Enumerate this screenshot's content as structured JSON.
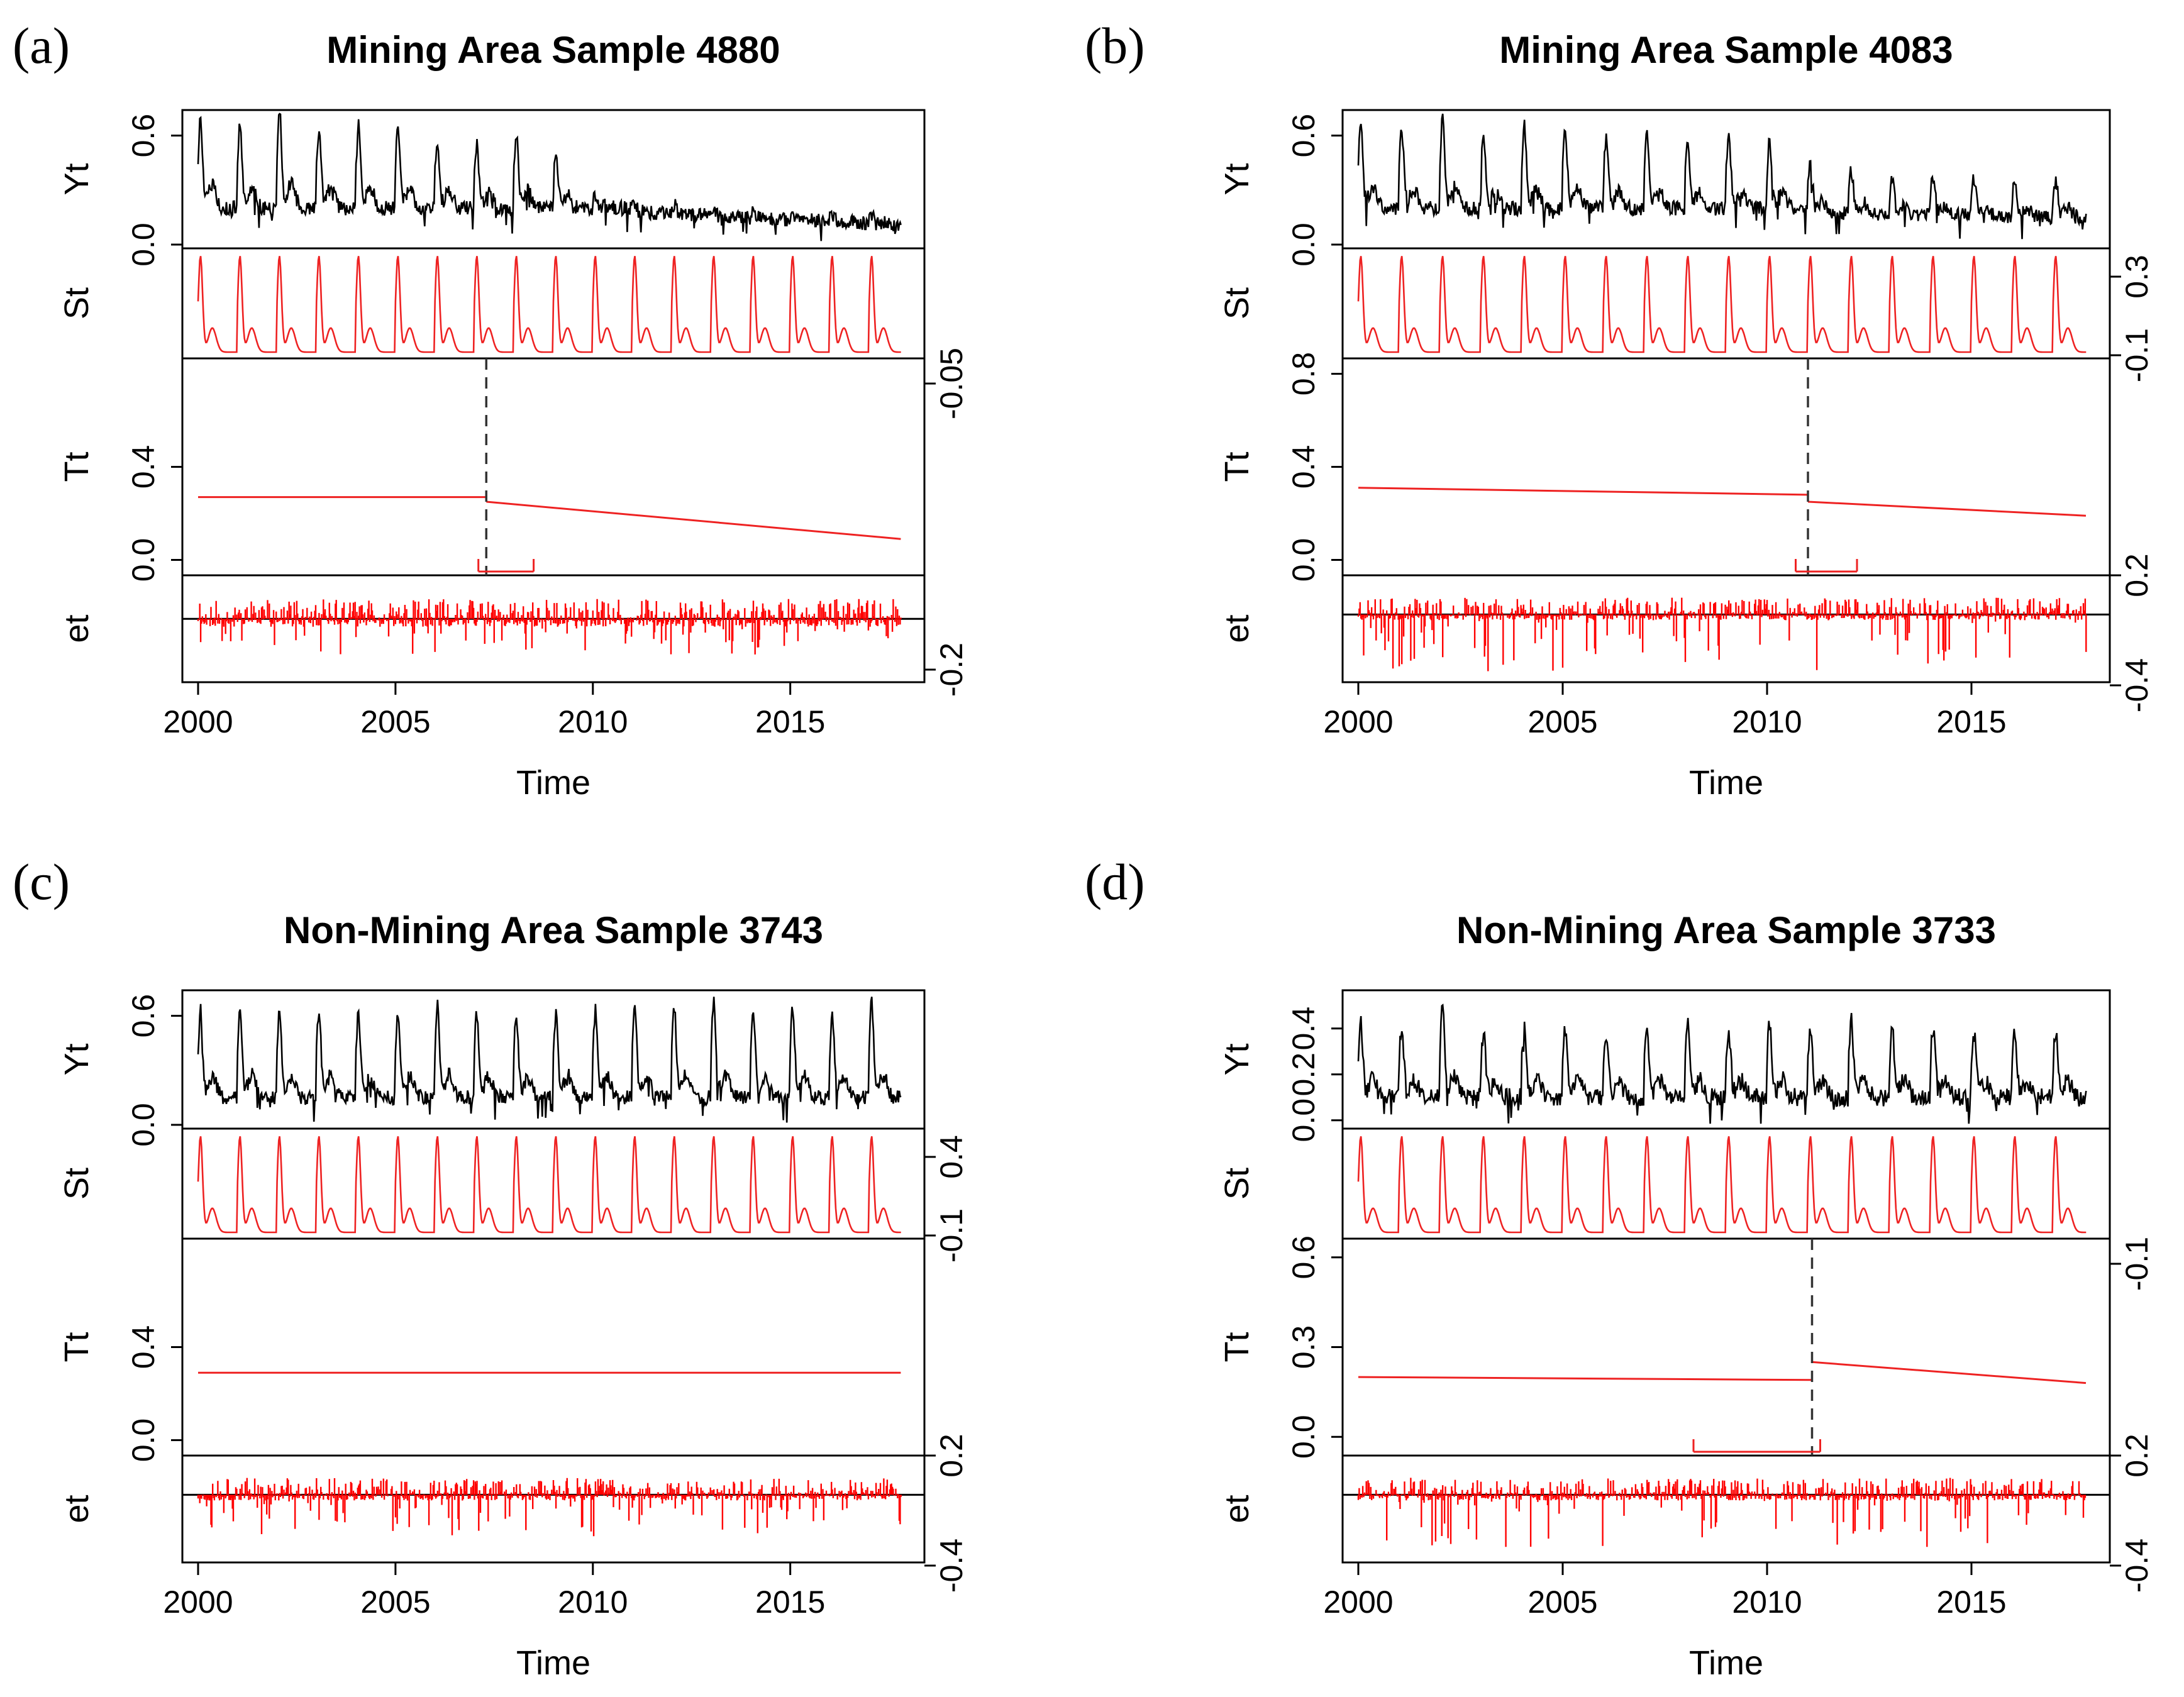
{
  "figure": {
    "description_labels": [
      "(a)",
      "(b)",
      "(c)",
      "(d)"
    ]
  },
  "chart_data": [
    {
      "type": "line",
      "letter": "(a)",
      "title": "Mining Area Sample 4880",
      "xlabel": "Time",
      "xlim": [
        2000,
        2018
      ],
      "xticks": [
        2000,
        2005,
        2010,
        2015
      ],
      "yt": {
        "label": "Yt",
        "ticks": [
          "0.0",
          "0.6"
        ],
        "ylim": [
          0,
          0.72
        ],
        "base": [
          0.2,
          0.2,
          0.2,
          0.2,
          0.2,
          0.2,
          0.2,
          0.2,
          0.2,
          0.2,
          0.2,
          0.17,
          0.16,
          0.15,
          0.14,
          0.13,
          0.12,
          0.11,
          0.1
        ],
        "amp": [
          0.5,
          0.46,
          0.55,
          0.43,
          0.46,
          0.44,
          0.38,
          0.36,
          0.4,
          0.3,
          0.06,
          0.06,
          0.06,
          0.05,
          0.05,
          0.05,
          0.05,
          0.05
        ],
        "color": "#000000"
      },
      "st": {
        "label": "St",
        "right_ticks": [
          "-0.05"
        ],
        "color": "#ee2222"
      },
      "tt": {
        "label": "Tt",
        "ticks": [
          "0.0",
          "0.4"
        ],
        "ylim": [
          -0.05,
          0.85
        ],
        "segments": [
          [
            [
              2000,
              0.27
            ],
            [
              2007.3,
              0.27
            ]
          ],
          [
            [
              2007.3,
              0.25
            ],
            [
              2017.8,
              0.09
            ]
          ]
        ],
        "breaks": [
          2007.3
        ],
        "ci": [
          [
            2007.1,
            2008.5
          ]
        ],
        "color": "#ee2222"
      },
      "et": {
        "label": "et",
        "right_ticks": [
          "-0.2"
        ],
        "ylim": [
          -0.3,
          0.2
        ],
        "pos": 0.1,
        "neg": 0.18,
        "seed": 11,
        "color": "#ff0000"
      }
    },
    {
      "type": "line",
      "letter": "(b)",
      "title": "Mining Area Sample 4083",
      "xlabel": "Time",
      "xlim": [
        2000,
        2018
      ],
      "xticks": [
        2000,
        2005,
        2010,
        2015
      ],
      "yt": {
        "label": "Yt",
        "ticks": [
          "0.0",
          "0.6"
        ],
        "ylim": [
          0,
          0.72
        ],
        "base": [
          0.2,
          0.2,
          0.2,
          0.2,
          0.2,
          0.2,
          0.2,
          0.2,
          0.2,
          0.2,
          0.2,
          0.17,
          0.17,
          0.16,
          0.16,
          0.15,
          0.15,
          0.15,
          0.15
        ],
        "amp": [
          0.48,
          0.42,
          0.5,
          0.4,
          0.45,
          0.42,
          0.38,
          0.4,
          0.36,
          0.38,
          0.36,
          0.28,
          0.24,
          0.2,
          0.22,
          0.22,
          0.2,
          0.2
        ],
        "color": "#000000"
      },
      "st": {
        "label": "St",
        "right_ticks": [
          "0.3",
          "-0.1"
        ],
        "color": "#ee2222"
      },
      "tt": {
        "label": "Tt",
        "ticks": [
          "0.0",
          "0.4",
          "0.8"
        ],
        "ylim": [
          -0.05,
          0.85
        ],
        "segments": [
          [
            [
              2000,
              0.31
            ],
            [
              2011.0,
              0.28
            ]
          ],
          [
            [
              2011.0,
              0.25
            ],
            [
              2017.8,
              0.19
            ]
          ]
        ],
        "breaks": [
          2011.0
        ],
        "ci": [
          [
            2010.7,
            2012.2
          ]
        ],
        "color": "#ee2222"
      },
      "et": {
        "label": "et",
        "right_ticks": [
          "0.2",
          "-0.4"
        ],
        "ylim": [
          -0.45,
          0.25
        ],
        "pos": 0.12,
        "neg": 0.4,
        "seed": 23,
        "color": "#ff0000"
      }
    },
    {
      "type": "line",
      "letter": "(c)",
      "title": "Non-Mining Area Sample 3743",
      "xlabel": "Time",
      "xlim": [
        2000,
        2018
      ],
      "xticks": [
        2000,
        2005,
        2010,
        2015
      ],
      "yt": {
        "label": "Yt",
        "ticks": [
          "0.0",
          "0.6"
        ],
        "ylim": [
          0,
          0.72
        ],
        "base": [
          0.15,
          0.15,
          0.15,
          0.15,
          0.15,
          0.15,
          0.15,
          0.15,
          0.15,
          0.15,
          0.15,
          0.15,
          0.15,
          0.15,
          0.15,
          0.15,
          0.15,
          0.15,
          0.15
        ],
        "amp": [
          0.48,
          0.5,
          0.46,
          0.48,
          0.45,
          0.48,
          0.5,
          0.47,
          0.46,
          0.5,
          0.49,
          0.48,
          0.5,
          0.52,
          0.5,
          0.5,
          0.45,
          0.52
        ],
        "color": "#000000"
      },
      "st": {
        "label": "St",
        "right_ticks": [
          "0.4",
          "-0.1"
        ],
        "color": "#ee2222"
      },
      "tt": {
        "label": "Tt",
        "ticks": [
          "0.0",
          "0.4"
        ],
        "ylim": [
          -0.05,
          0.85
        ],
        "segments": [
          [
            [
              2000,
              0.29
            ],
            [
              2017.8,
              0.29
            ]
          ]
        ],
        "breaks": [],
        "ci": [],
        "color": "#ee2222"
      },
      "et": {
        "label": "et",
        "right_ticks": [
          "0.2",
          "-0.4"
        ],
        "ylim": [
          -0.45,
          0.25
        ],
        "pos": 0.12,
        "neg": 0.3,
        "seed": 37,
        "color": "#ff0000"
      }
    },
    {
      "type": "line",
      "letter": "(d)",
      "title": "Non-Mining Area Sample 3733",
      "xlabel": "Time",
      "xlim": [
        2000,
        2018
      ],
      "xticks": [
        2000,
        2005,
        2010,
        2015
      ],
      "yt": {
        "label": "Yt",
        "ticks": [
          "0.0",
          "0.2",
          "0.4"
        ],
        "ylim": [
          -0.02,
          0.55
        ],
        "base": [
          0.1,
          0.1,
          0.1,
          0.1,
          0.1,
          0.1,
          0.1,
          0.1,
          0.1,
          0.1,
          0.1,
          0.1,
          0.1,
          0.1,
          0.1,
          0.1,
          0.1,
          0.1,
          0.1
        ],
        "amp": [
          0.32,
          0.3,
          0.38,
          0.28,
          0.3,
          0.3,
          0.28,
          0.3,
          0.32,
          0.28,
          0.32,
          0.3,
          0.35,
          0.3,
          0.3,
          0.28,
          0.28,
          0.28
        ],
        "color": "#000000"
      },
      "st": {
        "label": "St",
        "right_ticks": [
          "-0.1"
        ],
        "color": "#ee2222"
      },
      "tt": {
        "label": "Tt",
        "ticks": [
          "0.0",
          "0.3",
          "0.6"
        ],
        "ylim": [
          -0.05,
          0.65
        ],
        "segments": [
          [
            [
              2000,
              0.2
            ],
            [
              2011.1,
              0.19
            ]
          ],
          [
            [
              2011.1,
              0.25
            ],
            [
              2017.8,
              0.18
            ]
          ]
        ],
        "breaks": [
          2011.1
        ],
        "ci": [
          [
            2008.2,
            2011.3
          ]
        ],
        "color": "#ee2222"
      },
      "et": {
        "label": "et",
        "right_ticks": [
          "0.2",
          "-0.4"
        ],
        "ylim": [
          -0.45,
          0.25
        ],
        "pos": 0.12,
        "neg": 0.4,
        "seed": 51,
        "color": "#ff0000"
      }
    }
  ]
}
